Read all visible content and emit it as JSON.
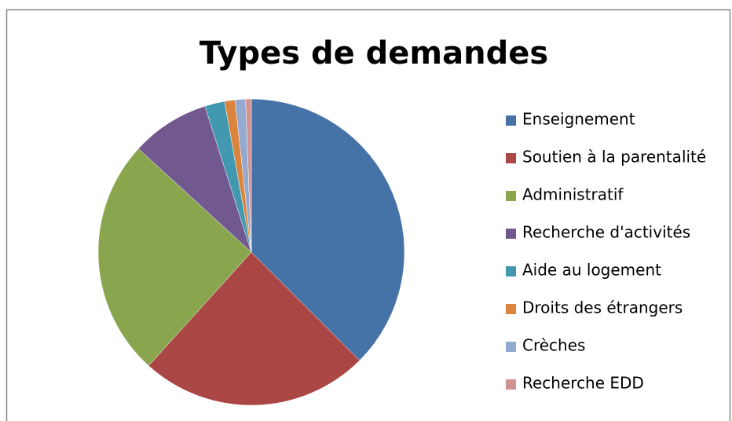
{
  "chart_data": {
    "type": "pie",
    "title": "Types de demandes",
    "categories": [
      "Enseignement",
      "Soutien à la parentalité",
      "Administratif",
      "Recherche d'activités",
      "Aide au logement",
      "Droits des étrangers",
      "Crèches",
      "Recherche EDD"
    ],
    "values": [
      37.5,
      24.2,
      25.1,
      8.3,
      2.1,
      1.1,
      1.1,
      0.6
    ],
    "colors": [
      "#4572A7",
      "#AA4643",
      "#89A54E",
      "#71588F",
      "#4198AF",
      "#DB843D",
      "#93A9CF",
      "#D19392"
    ],
    "legend": "right"
  }
}
